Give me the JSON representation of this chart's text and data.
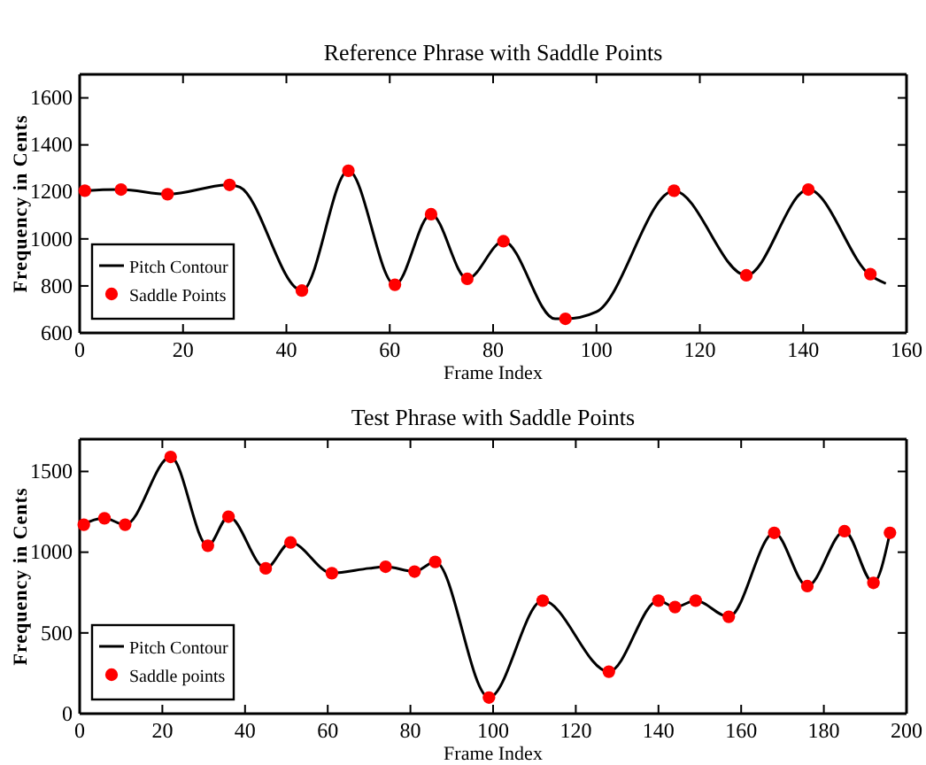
{
  "chart_data": [
    {
      "type": "line",
      "title": "Reference Phrase with Saddle Points",
      "xlabel": "Frame Index",
      "ylabel": "Frequency in Cents",
      "xlim": [
        0,
        160
      ],
      "xticks": [
        0,
        20,
        40,
        60,
        80,
        100,
        120,
        140,
        160
      ],
      "ylim": [
        600,
        1700
      ],
      "yticks": [
        600,
        800,
        1000,
        1200,
        1400,
        1600
      ],
      "grid": false,
      "legend": "bottom left",
      "series": [
        {
          "name": "Pitch Contour",
          "color": "#000000",
          "marker": "none",
          "line_style": "solid",
          "x": [
            0,
            1,
            8,
            17,
            29,
            31,
            43,
            52,
            61,
            68,
            75,
            82,
            92,
            94,
            100,
            115,
            129,
            141,
            153,
            156
          ],
          "values": [
            1200,
            1205,
            1210,
            1190,
            1230,
            1220,
            780,
            1290,
            805,
            1105,
            830,
            990,
            660,
            660,
            690,
            1205,
            845,
            1210,
            845,
            810
          ]
        },
        {
          "name": "Saddle Points",
          "type": "scatter",
          "color": "#ff0000",
          "marker": "circle",
          "x": [
            1,
            8,
            17,
            29,
            43,
            52,
            61,
            68,
            75,
            82,
            94,
            115,
            129,
            141,
            153
          ],
          "values": [
            1205,
            1210,
            1190,
            1230,
            780,
            1290,
            805,
            1105,
            830,
            990,
            660,
            1205,
            845,
            1210,
            850
          ]
        }
      ]
    },
    {
      "type": "line",
      "title": "Test Phrase with Saddle Points",
      "xlabel": "Frame Index",
      "ylabel": "Frequency in Cents",
      "xlim": [
        0,
        200
      ],
      "xticks": [
        0,
        20,
        40,
        60,
        80,
        100,
        120,
        140,
        160,
        180,
        200
      ],
      "ylim": [
        0,
        1700
      ],
      "yticks": [
        0,
        500,
        1000,
        1500
      ],
      "grid": false,
      "legend": "bottom left",
      "series": [
        {
          "name": "Pitch Contour",
          "color": "#000000",
          "marker": "none",
          "line_style": "solid",
          "x": [
            0,
            1,
            6,
            11,
            22,
            31,
            36,
            45,
            51,
            61,
            70,
            74,
            81,
            86,
            99,
            112,
            128,
            140,
            144,
            149,
            157,
            168,
            176,
            185,
            192,
            196
          ],
          "values": [
            1150,
            1170,
            1210,
            1170,
            1590,
            1040,
            1220,
            900,
            1060,
            870,
            900,
            910,
            880,
            940,
            100,
            700,
            260,
            700,
            660,
            700,
            600,
            1120,
            790,
            1130,
            810,
            1120
          ]
        },
        {
          "name": "Saddle points",
          "type": "scatter",
          "color": "#ff0000",
          "marker": "circle",
          "x": [
            1,
            6,
            11,
            22,
            31,
            36,
            45,
            51,
            61,
            74,
            81,
            86,
            99,
            112,
            128,
            140,
            144,
            149,
            157,
            168,
            176,
            185,
            192,
            196
          ],
          "values": [
            1170,
            1210,
            1170,
            1590,
            1040,
            1220,
            900,
            1060,
            870,
            910,
            880,
            940,
            100,
            700,
            260,
            700,
            660,
            700,
            600,
            1120,
            790,
            1130,
            810,
            1120
          ]
        }
      ]
    }
  ]
}
